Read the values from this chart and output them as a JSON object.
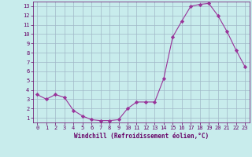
{
  "x": [
    0,
    1,
    2,
    3,
    4,
    5,
    6,
    7,
    8,
    9,
    10,
    11,
    12,
    13,
    14,
    15,
    16,
    17,
    18,
    19,
    20,
    21,
    22,
    23
  ],
  "y": [
    3.5,
    3.0,
    3.5,
    3.2,
    1.8,
    1.2,
    0.8,
    0.7,
    0.7,
    0.8,
    2.0,
    2.7,
    2.7,
    2.7,
    5.2,
    9.7,
    11.4,
    13.0,
    13.2,
    13.3,
    12.0,
    10.3,
    8.3,
    6.5
  ],
  "line_color": "#993399",
  "marker": "D",
  "marker_size": 2.2,
  "bg_color": "#c8ecec",
  "grid_color": "#a0b8c8",
  "xlabel": "Windchill (Refroidissement éolien,°C)",
  "xlabel_color": "#660066",
  "tick_color": "#660066",
  "xlim": [
    -0.5,
    23.5
  ],
  "ylim": [
    0.5,
    13.5
  ],
  "yticks": [
    1,
    2,
    3,
    4,
    5,
    6,
    7,
    8,
    9,
    10,
    11,
    12,
    13
  ],
  "xticks": [
    0,
    1,
    2,
    3,
    4,
    5,
    6,
    7,
    8,
    9,
    10,
    11,
    12,
    13,
    14,
    15,
    16,
    17,
    18,
    19,
    20,
    21,
    22,
    23
  ]
}
